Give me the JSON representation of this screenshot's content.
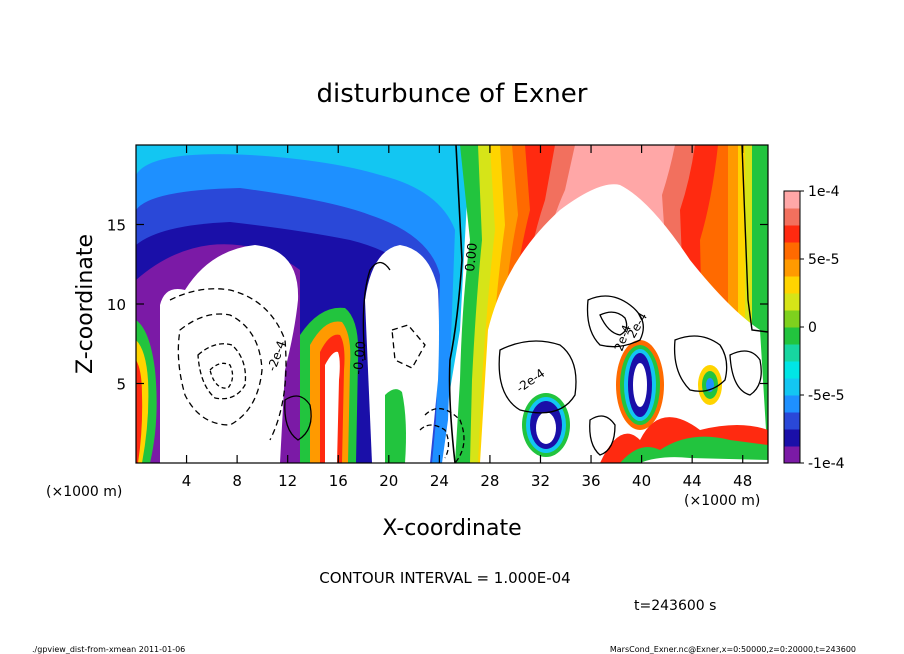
{
  "chart_data": {
    "type": "heatmap",
    "title": "disturbunce of Exner",
    "xlabel": "X-coordinate",
    "ylabel": "Z-coordinate",
    "x_unit": "(×1000 m)",
    "y_unit": "(×1000 m)",
    "xlim": [
      0,
      50
    ],
    "ylim": [
      0,
      20
    ],
    "x_ticks": [
      4,
      8,
      12,
      16,
      20,
      24,
      28,
      32,
      36,
      40,
      44,
      48
    ],
    "y_ticks": [
      5,
      10,
      15
    ],
    "colorbar": {
      "range": [
        -0.0001,
        0.0001
      ],
      "tick_labels": [
        "1e-4",
        "5e-5",
        "0",
        "-5e-5",
        "-1e-4"
      ],
      "tick_values": [
        0.0001,
        5e-05,
        0,
        -5e-05,
        -0.0001
      ],
      "colors": [
        "#7b1aa6",
        "#1a0fa8",
        "#2a48d8",
        "#1e90ff",
        "#13c6f2",
        "#00e5e5",
        "#17d6a0",
        "#22c43e",
        "#7ed11e",
        "#d6e418",
        "#ffd400",
        "#ff9a00",
        "#ff6a00",
        "#ff2a10",
        "#f2705e",
        "#ffa7a7"
      ]
    },
    "contour_labels": [
      "0.00",
      "-0.00",
      "-2e-4",
      "-2e-4",
      "2e-4",
      "2e-4"
    ],
    "contour_interval_text": "CONTOUR INTERVAL = 1.000E-04",
    "time_text": "t=243600 s"
  },
  "footer": {
    "left": "./gpview_dist-from-xmean   2011-01-06",
    "right": "MarsCond_Exner.nc@Exner,x=0:50000,z=0:20000,t=243600"
  }
}
